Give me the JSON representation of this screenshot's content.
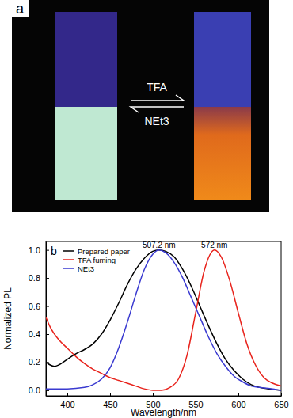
{
  "photo": {
    "label": "a",
    "forward": "TFA",
    "reverse": "NEt3"
  },
  "chart_data": {
    "type": "line",
    "panel_label": "b",
    "x_label": "Wavelength/nm",
    "y_label": "Normalized PL",
    "xlim": [
      375,
      650
    ],
    "ylim": [
      -0.04,
      1.06
    ],
    "xticks": [
      400,
      450,
      500,
      550,
      600,
      650
    ],
    "yticks": [
      {
        "value": 0,
        "label": "0.0"
      },
      {
        "value": 0.2,
        "label": "0.2"
      },
      {
        "value": 0.4,
        "label": "0.4"
      },
      {
        "value": 0.6,
        "label": "0.6"
      },
      {
        "value": 0.8,
        "label": "0.8"
      },
      {
        "value": 1,
        "label": "1.0"
      }
    ],
    "legend": "upper left",
    "series": [
      {
        "name": "Prepared paper",
        "color": "#000000",
        "line_style": "solid",
        "x": [
          375,
          380,
          385,
          390,
          400,
          410,
          420,
          430,
          440,
          450,
          460,
          470,
          480,
          490,
          500,
          507,
          515,
          525,
          535,
          545,
          555,
          565,
          575,
          585,
          595,
          605,
          615,
          625,
          635,
          650
        ],
        "values": [
          0.2,
          0.18,
          0.17,
          0.18,
          0.22,
          0.26,
          0.29,
          0.33,
          0.4,
          0.5,
          0.62,
          0.75,
          0.86,
          0.94,
          0.99,
          1.0,
          0.99,
          0.95,
          0.86,
          0.74,
          0.6,
          0.46,
          0.33,
          0.22,
          0.14,
          0.08,
          0.04,
          0.02,
          0.01,
          0.0
        ]
      },
      {
        "name": "TFA fuming",
        "color": "#e8231c",
        "line_style": "solid",
        "x": [
          375,
          380,
          390,
          400,
          410,
          420,
          430,
          440,
          450,
          460,
          470,
          480,
          490,
          500,
          510,
          520,
          530,
          540,
          550,
          560,
          572,
          580,
          590,
          600,
          610,
          620,
          630,
          640,
          650
        ],
        "values": [
          0.52,
          0.45,
          0.36,
          0.3,
          0.24,
          0.19,
          0.15,
          0.12,
          0.09,
          0.07,
          0.05,
          0.03,
          0.01,
          0.0,
          0.0,
          0.02,
          0.08,
          0.25,
          0.55,
          0.85,
          1.0,
          0.95,
          0.78,
          0.55,
          0.33,
          0.18,
          0.09,
          0.05,
          0.03
        ]
      },
      {
        "name": "NEt3",
        "color": "#3a3ad0",
        "line_style": "solid",
        "x": [
          375,
          400,
          420,
          430,
          440,
          450,
          460,
          470,
          480,
          490,
          500,
          507,
          515,
          525,
          535,
          545,
          555,
          565,
          575,
          585,
          595,
          605,
          615,
          625,
          640,
          650
        ],
        "values": [
          0.01,
          0.01,
          0.02,
          0.04,
          0.08,
          0.16,
          0.3,
          0.48,
          0.68,
          0.86,
          0.97,
          1.0,
          0.98,
          0.91,
          0.8,
          0.66,
          0.52,
          0.38,
          0.26,
          0.17,
          0.1,
          0.06,
          0.03,
          0.02,
          0.01,
          0.0
        ]
      }
    ],
    "annotations": [
      {
        "text": "507.2 nm",
        "x": 507.2,
        "y": 1.0
      },
      {
        "text": "572 nm",
        "x": 572,
        "y": 1.0
      }
    ]
  }
}
